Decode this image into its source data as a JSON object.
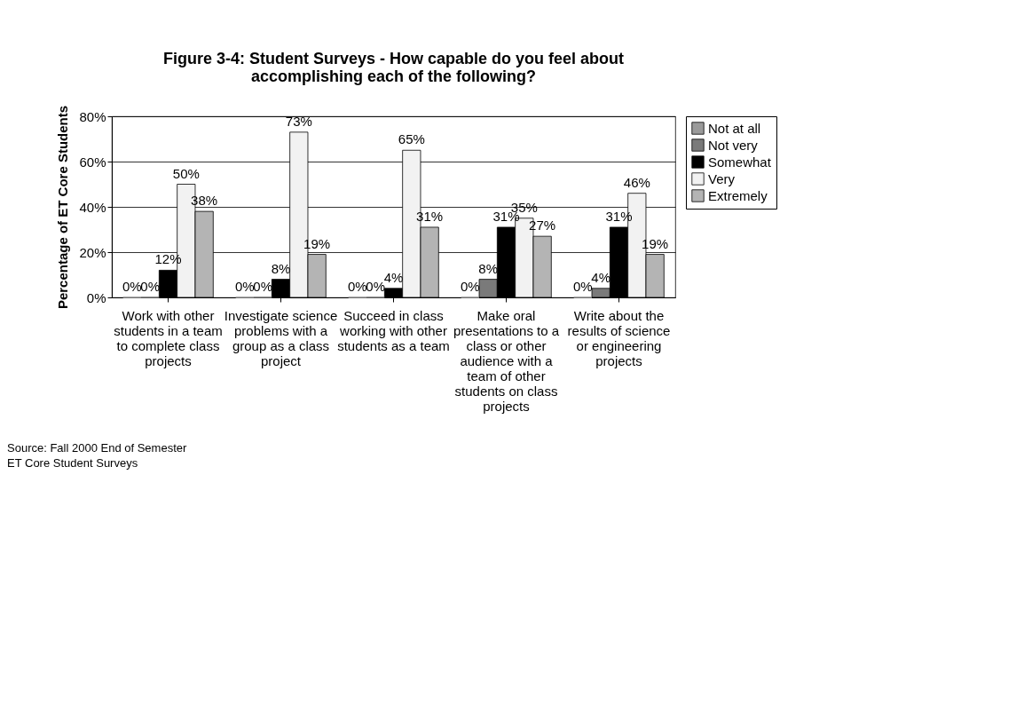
{
  "chart_data": {
    "type": "bar",
    "title": "Figure 3-4:  Student Surveys - How capable do you feel about accomplishing each of the following?",
    "ylabel": "Percentage of ET Core Students",
    "categories": [
      "Work with other students in a team to complete class projects",
      "Investigate science problems with a group as a class project",
      "Succeed in class working with other students as a team",
      "Make oral presentations to a class or other audience with a team of other students on class projects",
      "Write about the results of science or engineering projects"
    ],
    "series": [
      {
        "name": "Not at all",
        "color": "#9a9a9a",
        "values": [
          0,
          0,
          0,
          0,
          0
        ],
        "value_labels": [
          "0%",
          "0%",
          "0%",
          "0%",
          "0%"
        ]
      },
      {
        "name": "Not very",
        "color": "#7a7a7a",
        "values": [
          0,
          0,
          0,
          8,
          4
        ],
        "value_labels": [
          "0%",
          "0%",
          "0%",
          "8%",
          "4%"
        ]
      },
      {
        "name": "Somewhat",
        "color": "#000000",
        "values": [
          12,
          8,
          4,
          31,
          31
        ],
        "value_labels": [
          "12%",
          "8%",
          "4%",
          "31%",
          "31%"
        ]
      },
      {
        "name": "Very",
        "color": "#f2f2f2",
        "values": [
          50,
          73,
          65,
          35,
          46
        ],
        "value_labels": [
          "50%",
          "73%",
          "65%",
          "35%",
          "46%"
        ]
      },
      {
        "name": "Extremely",
        "color": "#b4b4b4",
        "values": [
          38,
          19,
          31,
          27,
          19
        ],
        "value_labels": [
          "38%",
          "19%",
          "31%",
          "27%",
          "19%"
        ]
      }
    ],
    "ylim": [
      0,
      80
    ],
    "yticks": [
      {
        "value": 0,
        "label": "0%"
      },
      {
        "value": 20,
        "label": "20%"
      },
      {
        "value": 40,
        "label": "40%"
      },
      {
        "value": 60,
        "label": "60%"
      },
      {
        "value": 80,
        "label": "80%"
      }
    ],
    "grid": "y",
    "legend": "right",
    "annotations": [
      "Source:  Fall 2000 End of Semester",
      "ET Core Student Surveys"
    ]
  }
}
